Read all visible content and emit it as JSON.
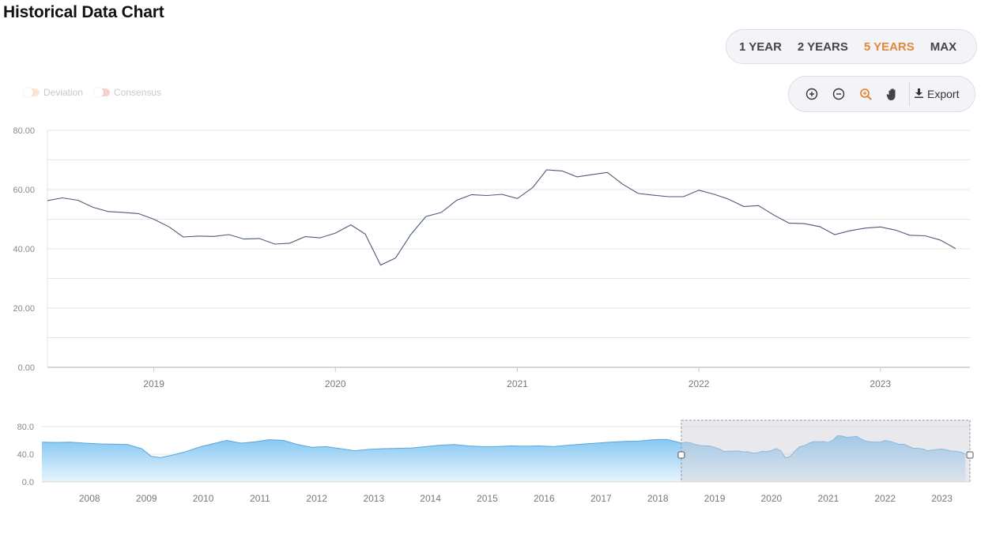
{
  "page": {
    "title": "Historical Data Chart"
  },
  "range_buttons": [
    {
      "label": "1 YEAR",
      "active": false
    },
    {
      "label": "2 YEARS",
      "active": false
    },
    {
      "label": "5 YEARS",
      "active": true
    },
    {
      "label": "MAX",
      "active": false
    }
  ],
  "toolbar": {
    "export_label": "Export",
    "icons": [
      "zoom-in-icon",
      "zoom-out-icon",
      "zoom-select-icon",
      "pan-hand-icon",
      "download-icon"
    ]
  },
  "legend": [
    {
      "label": "Deviation",
      "color": "#fbe6d2"
    },
    {
      "label": "Consensus",
      "color": "#f6d2cc"
    }
  ],
  "colors": {
    "line": "#4a5a78",
    "accent": "#e0883a",
    "navigator_fill_top": "#7ec4f2",
    "navigator_fill_bottom": "#e8f4fd",
    "navigator_line": "#5aa6de",
    "selection_fill": "#cfcfd6"
  },
  "chart_data": [
    {
      "type": "line",
      "x_axis": {
        "type": "time",
        "min": "2018-06-01",
        "max": "2023-06-30",
        "ticks": [
          "2019",
          "2020",
          "2021",
          "2022",
          "2023"
        ]
      },
      "y_axis": {
        "min": 0,
        "max": 80,
        "ticks": [
          "0.00",
          "20.00",
          "40.00",
          "60.00",
          "80.00"
        ]
      },
      "grid": true,
      "series": [
        {
          "points": [
            [
              "2018-06-01",
              56.3
            ],
            [
              "2018-07-01",
              57.2
            ],
            [
              "2018-08-01",
              56.4
            ],
            [
              "2018-09-01",
              54.0
            ],
            [
              "2018-10-01",
              52.6
            ],
            [
              "2018-11-01",
              52.3
            ],
            [
              "2018-12-01",
              51.9
            ],
            [
              "2019-01-01",
              50.0
            ],
            [
              "2019-02-01",
              47.4
            ],
            [
              "2019-03-01",
              44.0
            ],
            [
              "2019-04-01",
              44.3
            ],
            [
              "2019-05-01",
              44.2
            ],
            [
              "2019-06-01",
              44.8
            ],
            [
              "2019-07-01",
              43.3
            ],
            [
              "2019-08-01",
              43.5
            ],
            [
              "2019-09-01",
              41.6
            ],
            [
              "2019-10-01",
              41.9
            ],
            [
              "2019-11-01",
              44.1
            ],
            [
              "2019-12-01",
              43.7
            ],
            [
              "2020-01-01",
              45.3
            ],
            [
              "2020-02-01",
              48.1
            ],
            [
              "2020-03-01",
              45.0
            ],
            [
              "2020-04-01",
              34.5
            ],
            [
              "2020-05-01",
              36.9
            ],
            [
              "2020-06-01",
              44.9
            ],
            [
              "2020-07-01",
              50.9
            ],
            [
              "2020-08-01",
              52.3
            ],
            [
              "2020-09-01",
              56.4
            ],
            [
              "2020-10-01",
              58.3
            ],
            [
              "2020-11-01",
              58.0
            ],
            [
              "2020-12-01",
              58.4
            ],
            [
              "2021-01-01",
              57.0
            ],
            [
              "2021-02-01",
              60.7
            ],
            [
              "2021-03-01",
              66.7
            ],
            [
              "2021-04-01",
              66.3
            ],
            [
              "2021-05-01",
              64.3
            ],
            [
              "2021-06-01",
              65.1
            ],
            [
              "2021-07-01",
              65.8
            ],
            [
              "2021-08-01",
              61.8
            ],
            [
              "2021-09-01",
              58.7
            ],
            [
              "2021-10-01",
              58.1
            ],
            [
              "2021-11-01",
              57.6
            ],
            [
              "2021-12-01",
              57.6
            ],
            [
              "2022-01-01",
              59.8
            ],
            [
              "2022-02-01",
              58.4
            ],
            [
              "2022-03-01",
              56.8
            ],
            [
              "2022-04-01",
              54.3
            ],
            [
              "2022-05-01",
              54.6
            ],
            [
              "2022-06-01",
              51.4
            ],
            [
              "2022-07-01",
              48.7
            ],
            [
              "2022-08-01",
              48.5
            ],
            [
              "2022-09-01",
              47.5
            ],
            [
              "2022-10-01",
              44.8
            ],
            [
              "2022-11-01",
              46.1
            ],
            [
              "2022-12-01",
              47.0
            ],
            [
              "2023-01-01",
              47.4
            ],
            [
              "2023-02-01",
              46.3
            ],
            [
              "2023-03-01",
              44.6
            ],
            [
              "2023-04-01",
              44.4
            ],
            [
              "2023-05-01",
              43.0
            ],
            [
              "2023-06-01",
              40.1
            ]
          ]
        }
      ]
    },
    {
      "type": "area",
      "x_axis": {
        "type": "time",
        "min": "2007-03-01",
        "max": "2023-06-30",
        "ticks": [
          "2008",
          "2009",
          "2010",
          "2011",
          "2012",
          "2013",
          "2014",
          "2015",
          "2016",
          "2017",
          "2018",
          "2019",
          "2020",
          "2021",
          "2022",
          "2023"
        ]
      },
      "y_axis": {
        "min": 0,
        "max": 80,
        "ticks": [
          "0.0",
          "40.0",
          "80.0"
        ]
      },
      "selection": {
        "from": "2018-06-01",
        "to": "2023-06-30"
      },
      "series": [
        {
          "points": [
            [
              "2007-03-01",
              57.5
            ],
            [
              "2007-06-01",
              57.0
            ],
            [
              "2007-09-01",
              57.5
            ],
            [
              "2007-12-01",
              56.0
            ],
            [
              "2008-03-01",
              55.0
            ],
            [
              "2008-06-01",
              54.5
            ],
            [
              "2008-09-01",
              54.0
            ],
            [
              "2008-12-01",
              48.0
            ],
            [
              "2009-02-01",
              37.0
            ],
            [
              "2009-04-01",
              35.0
            ],
            [
              "2009-06-01",
              38.0
            ],
            [
              "2009-09-01",
              43.0
            ],
            [
              "2009-12-01",
              50.0
            ],
            [
              "2010-03-01",
              55.0
            ],
            [
              "2010-06-01",
              60.0
            ],
            [
              "2010-09-01",
              56.0
            ],
            [
              "2010-12-01",
              58.0
            ],
            [
              "2011-03-01",
              61.0
            ],
            [
              "2011-06-01",
              60.0
            ],
            [
              "2011-09-01",
              54.0
            ],
            [
              "2011-12-01",
              50.0
            ],
            [
              "2012-03-01",
              51.0
            ],
            [
              "2012-06-01",
              48.0
            ],
            [
              "2012-09-01",
              45.0
            ],
            [
              "2012-12-01",
              47.0
            ],
            [
              "2013-03-01",
              48.0
            ],
            [
              "2013-06-01",
              48.5
            ],
            [
              "2013-09-01",
              49.0
            ],
            [
              "2013-12-01",
              51.0
            ],
            [
              "2014-03-01",
              53.0
            ],
            [
              "2014-06-01",
              54.0
            ],
            [
              "2014-09-01",
              52.0
            ],
            [
              "2014-12-01",
              51.0
            ],
            [
              "2015-03-01",
              51.0
            ],
            [
              "2015-06-01",
              52.0
            ],
            [
              "2015-09-01",
              51.5
            ],
            [
              "2015-12-01",
              52.0
            ],
            [
              "2016-03-01",
              51.0
            ],
            [
              "2016-06-01",
              53.0
            ],
            [
              "2016-09-01",
              54.5
            ],
            [
              "2016-12-01",
              56.0
            ],
            [
              "2017-03-01",
              57.5
            ],
            [
              "2017-06-01",
              58.5
            ],
            [
              "2017-09-01",
              59.0
            ],
            [
              "2017-12-01",
              61.0
            ],
            [
              "2018-03-01",
              61.5
            ],
            [
              "2018-06-01",
              57.0
            ]
          ]
        }
      ]
    }
  ]
}
